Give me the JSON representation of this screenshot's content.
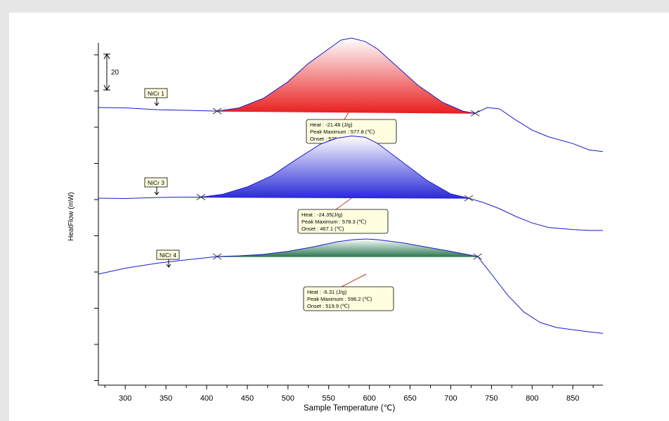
{
  "chart_data": {
    "type": "line",
    "xlabel": "Sample Temperature (℃)",
    "ylabel": "HeatFlow (mW)",
    "xlim": [
      267,
      887
    ],
    "xticks": [
      "300",
      "350",
      "400",
      "450",
      "500",
      "550",
      "600",
      "650",
      "700",
      "750",
      "800",
      "850"
    ],
    "scale_bar_label": "20",
    "scale_bar_mW": 20,
    "grid": false,
    "colors": {
      "curve": "#1a1acc",
      "nicr1_fill": "#e82020",
      "nicr3_fill": "#2a2ad8",
      "nicr4_fill": "#2f7a52",
      "callout_bg": "#ffffe0",
      "leader": "#c0392b"
    },
    "series": [
      {
        "name": "NiCr 1",
        "x": [
          267,
          300,
          340,
          380,
          413,
          440,
          470,
          500,
          525,
          550,
          565,
          578,
          595,
          610,
          630,
          660,
          690,
          715,
          730,
          745,
          760,
          780,
          800,
          820,
          850,
          870,
          887
        ],
        "y": [
          0,
          -0.2,
          -1.2,
          -1.6,
          -2.0,
          -0.2,
          5.2,
          14.4,
          24.6,
          32.7,
          37.6,
          38.8,
          36.8,
          32.7,
          24.5,
          12.3,
          2.9,
          -2.0,
          -3.2,
          0,
          -0.8,
          -7.0,
          -12.6,
          -16.3,
          -20.1,
          -23.6,
          -24.6
        ],
        "peak": {
          "label_heat": "Heat : -21.48 (J/g)",
          "label_peak": "Peak Maximum : 577.8 (℃)",
          "label_onset": "Onset : 525.4 (℃)",
          "start": 413,
          "end": 730,
          "fill": "#e82020"
        }
      },
      {
        "name": "NiCr 3",
        "x": [
          267,
          300,
          340,
          370,
          393,
          420,
          450,
          480,
          510,
          540,
          560,
          578,
          595,
          610,
          640,
          670,
          700,
          722,
          740,
          760,
          780,
          800,
          820,
          850,
          870,
          887
        ],
        "y": [
          0,
          -0.2,
          0.4,
          0.6,
          0.6,
          2.2,
          6.3,
          12.5,
          21.6,
          30.2,
          33.5,
          34.7,
          34.0,
          30.6,
          20.4,
          10.2,
          2.4,
          0,
          -2.4,
          -5.9,
          -10.2,
          -13.8,
          -16.3,
          -17.5,
          -18.0,
          -18.0
        ],
        "peak": {
          "label_heat": "Heat : -24.35(J/g)",
          "label_peak": "Peak Maximum : 578.3 (℃)",
          "label_onset": "Onset : 467.1 (℃)",
          "start": 393,
          "end": 722,
          "fill": "#2a2ad8"
        }
      },
      {
        "name": "NiCr 4",
        "x": [
          267,
          300,
          340,
          380,
          413,
          440,
          470,
          500,
          530,
          560,
          580,
          596,
          610,
          640,
          670,
          700,
          733,
          750,
          770,
          790,
          810,
          830,
          850,
          870,
          887
        ],
        "y": [
          0,
          3.3,
          6.1,
          8.2,
          9.8,
          10.2,
          11.0,
          12.7,
          15.1,
          18.0,
          19.2,
          19.6,
          19.2,
          17.5,
          15.1,
          12.7,
          9.8,
          0,
          -11.8,
          -21.2,
          -27.0,
          -29.8,
          -31.0,
          -32.2,
          -33.1
        ],
        "peak": {
          "label_heat": "Heat : -6.31 (J/g)",
          "label_peak": "Peak Maximum : 596.2 (℃)",
          "label_onset": "Onset : 519.9 (℃)",
          "start": 413,
          "end": 733,
          "fill": "#2f7a52"
        }
      }
    ]
  }
}
